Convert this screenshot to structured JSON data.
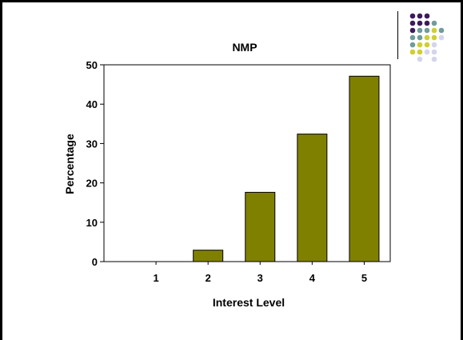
{
  "colors": {
    "bar_fill": "#808000",
    "dot_purple": "#3d1a5c",
    "dot_teal": "#6f9c9c",
    "dot_yellow": "#cfcf30",
    "dot_lavender": "#d4d4ec"
  },
  "decoration": {
    "dot_pattern": [
      [
        "purple",
        "purple",
        "purple",
        "",
        ""
      ],
      [
        "purple",
        "purple",
        "purple",
        "teal",
        ""
      ],
      [
        "purple",
        "teal",
        "teal",
        "yellow",
        "teal"
      ],
      [
        "teal",
        "teal",
        "yellow",
        "yellow",
        "lavender"
      ],
      [
        "teal",
        "yellow",
        "yellow",
        "lavender",
        ""
      ],
      [
        "yellow",
        "yellow",
        "lavender",
        "lavender",
        ""
      ],
      [
        "",
        "lavender",
        "",
        "lavender",
        ""
      ]
    ]
  },
  "chart_data": {
    "type": "bar",
    "title": "NMP",
    "xlabel": "Interest Level",
    "ylabel": "Percentage",
    "categories": [
      "1",
      "2",
      "3",
      "4",
      "5"
    ],
    "values": [
      0,
      2.9,
      17.6,
      32.4,
      47.1
    ],
    "ylim": [
      0,
      50
    ],
    "yticks": [
      "0",
      "10",
      "20",
      "30",
      "40",
      "50"
    ],
    "grid": false,
    "legend": "none"
  }
}
